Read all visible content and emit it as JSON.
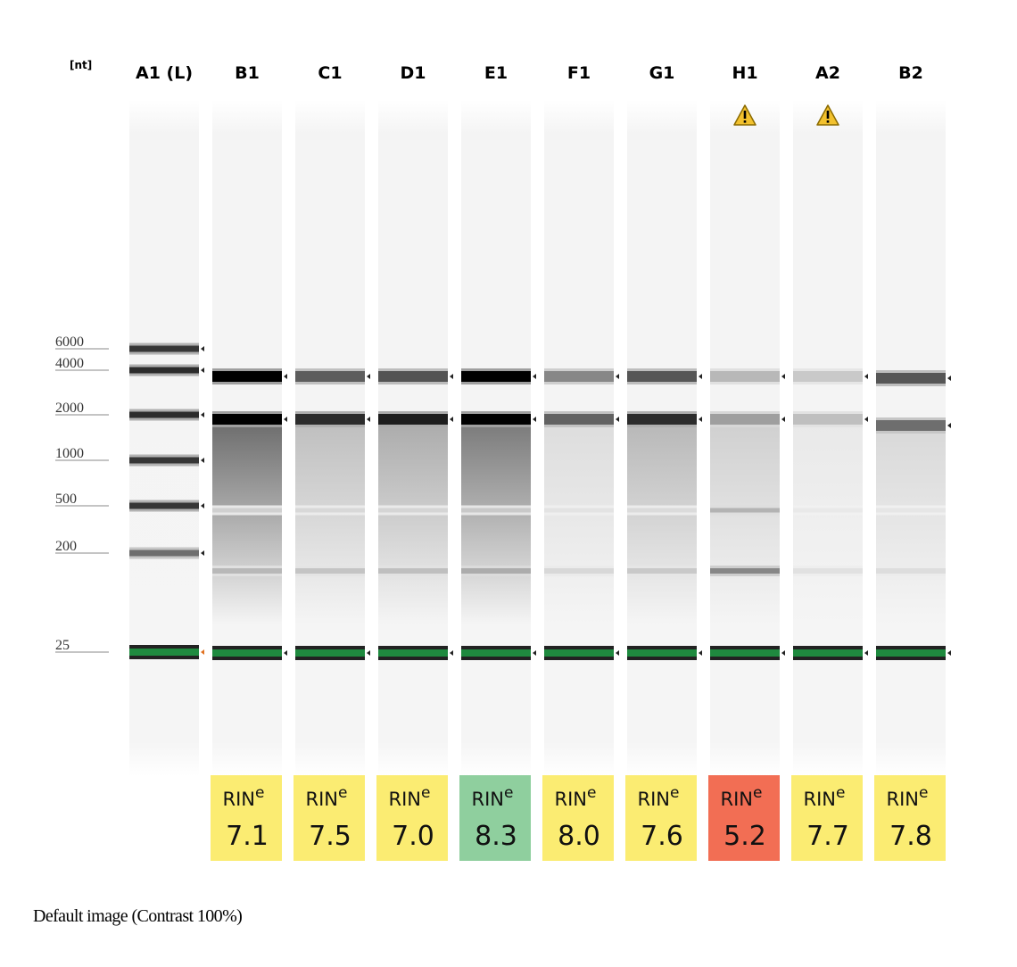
{
  "unit_label": "[nt]",
  "ladder_lane": {
    "label": "A1 (L)",
    "bands": [
      {
        "size": "6000",
        "intensity": 0.78
      },
      {
        "size": "4000",
        "intensity": 0.82
      },
      {
        "size": "2000",
        "intensity": 0.82
      },
      {
        "size": "1000",
        "intensity": 0.78
      },
      {
        "size": "500",
        "intensity": 0.78
      },
      {
        "size": "200",
        "intensity": 0.55
      },
      {
        "size": "25",
        "intensity": 0.9,
        "marker": true
      }
    ]
  },
  "size_labels": [
    "6000",
    "4000",
    "2000",
    "1000",
    "500",
    "200",
    "25"
  ],
  "samples": [
    {
      "well": "B1",
      "rin_label": "RIN",
      "rin_sup": "e",
      "rin_value": "7.1",
      "rin_color": "#fbec72",
      "warning": false,
      "band_28s": 1.0,
      "band_18s": 1.0,
      "smear": 0.55,
      "low_band": 0.25
    },
    {
      "well": "C1",
      "rin_label": "RIN",
      "rin_sup": "e",
      "rin_value": "7.5",
      "rin_color": "#fbec72",
      "warning": false,
      "band_28s": 0.62,
      "band_18s": 0.82,
      "smear": 0.22,
      "low_band": 0.2
    },
    {
      "well": "D1",
      "rin_label": "RIN",
      "rin_sup": "e",
      "rin_value": "7.0",
      "rin_color": "#fbec72",
      "warning": false,
      "band_28s": 0.66,
      "band_18s": 0.88,
      "smear": 0.3,
      "low_band": 0.22
    },
    {
      "well": "E1",
      "rin_label": "RIN",
      "rin_sup": "e",
      "rin_value": "8.3",
      "rin_color": "#8fcf9e",
      "warning": false,
      "band_28s": 1.0,
      "band_18s": 1.0,
      "smear": 0.5,
      "low_band": 0.3
    },
    {
      "well": "F1",
      "rin_label": "RIN",
      "rin_sup": "e",
      "rin_value": "8.0",
      "rin_color": "#fbec72",
      "warning": false,
      "band_28s": 0.45,
      "band_18s": 0.6,
      "smear": 0.1,
      "low_band": 0.12
    },
    {
      "well": "G1",
      "rin_label": "RIN",
      "rin_sup": "e",
      "rin_value": "7.6",
      "rin_color": "#fbec72",
      "warning": false,
      "band_28s": 0.65,
      "band_18s": 0.82,
      "smear": 0.25,
      "low_band": 0.18
    },
    {
      "well": "H1",
      "rin_label": "RIN",
      "rin_sup": "e",
      "rin_value": "5.2",
      "rin_color": "#f26e54",
      "warning": true,
      "band_28s": 0.25,
      "band_18s": 0.35,
      "smear": 0.15,
      "low_band": 0.45
    },
    {
      "well": "A2",
      "rin_label": "RIN",
      "rin_sup": "e",
      "rin_value": "7.7",
      "rin_color": "#fbec72",
      "warning": true,
      "band_28s": 0.18,
      "band_18s": 0.22,
      "smear": 0.05,
      "low_band": 0.08
    },
    {
      "well": "B2",
      "rin_label": "RIN",
      "rin_sup": "e",
      "rin_value": "7.8",
      "rin_color": "#fbec72",
      "warning": false,
      "band_28s": 0.65,
      "band_18s": 0.55,
      "smear": 0.12,
      "low_band": 0.1
    }
  ],
  "colors": {
    "lower_marker": "#1f8a3f",
    "ladder_arrow": "#e07020",
    "warning_fill": "#f2c12e",
    "warning_stroke": "#8a6a00"
  },
  "caption": "Default image (Contrast 100%)"
}
